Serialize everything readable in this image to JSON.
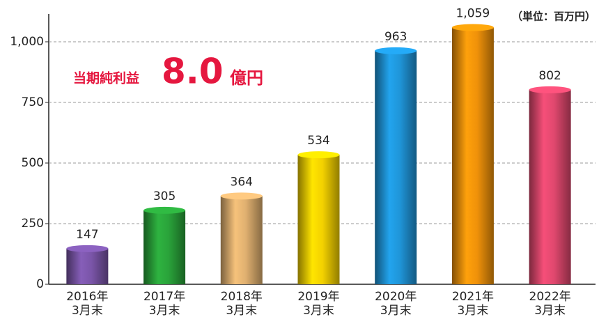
{
  "chart_data": {
    "type": "bar",
    "categories": [
      [
        "2016年",
        "3月末"
      ],
      [
        "2017年",
        "3月末"
      ],
      [
        "2018年",
        "3月末"
      ],
      [
        "2019年",
        "3月末"
      ],
      [
        "2020年",
        "3月末"
      ],
      [
        "2021年",
        "3月末"
      ],
      [
        "2022年",
        "3月末"
      ]
    ],
    "values": [
      147,
      305,
      364,
      534,
      963,
      1059,
      802
    ],
    "value_labels": [
      "147",
      "305",
      "364",
      "534",
      "963",
      "1,059",
      "802"
    ],
    "colors": [
      "#7a55a8",
      "#2aa33a",
      "#e0b070",
      "#f2d000",
      "#1f95d8",
      "#f0920a",
      "#e0486e"
    ],
    "ylim": [
      0,
      1000
    ],
    "yticks": [
      0,
      250,
      500,
      750,
      {
        "value": 1000,
        "label": "1,000"
      }
    ],
    "grid": true,
    "unit": "（単位：百万円）",
    "annotation": {
      "label": "当期純利益",
      "value": "8.0",
      "unit": "億円"
    }
  }
}
